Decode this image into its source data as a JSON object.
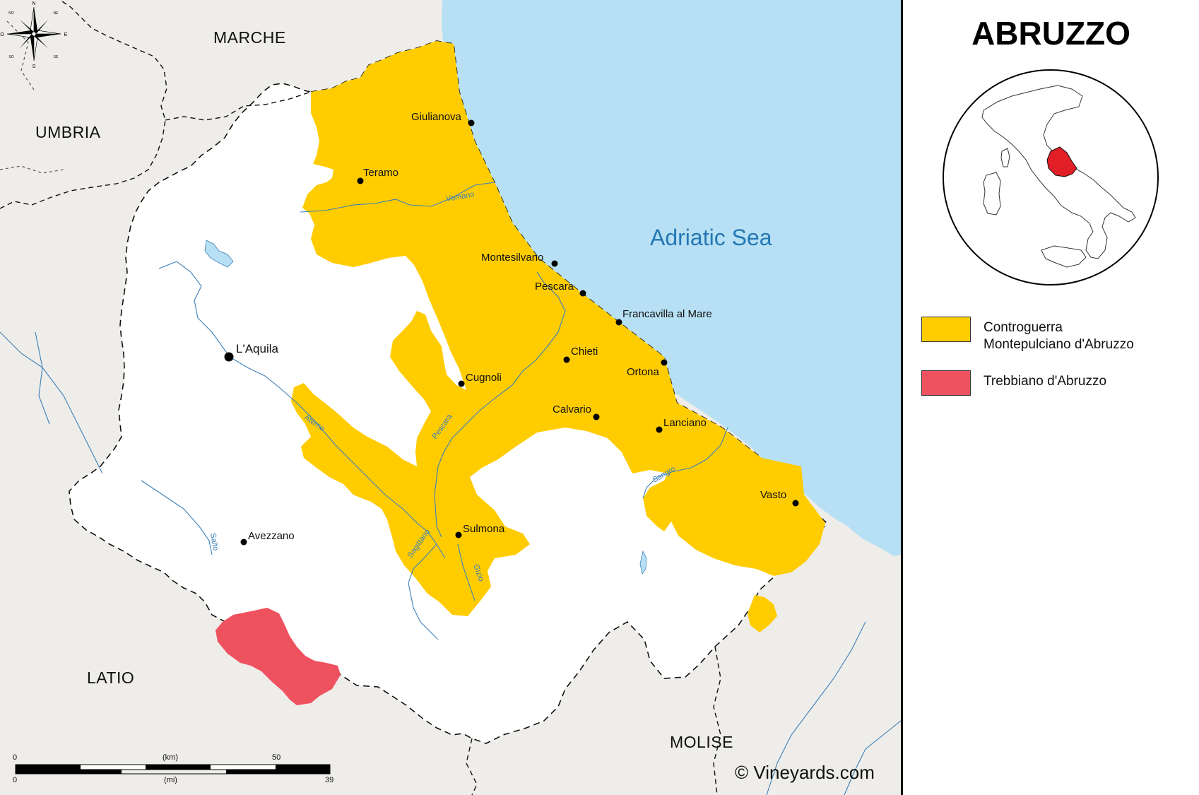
{
  "title": "ABRUZZO",
  "sea_label": "Adriatic Sea",
  "regions": [
    "MARCHE",
    "UMBRIA",
    "LATIO",
    "MOLISE"
  ],
  "cities": [
    {
      "name": "Giulianova"
    },
    {
      "name": "Teramo"
    },
    {
      "name": "Montesilvano"
    },
    {
      "name": "Pescara"
    },
    {
      "name": "Francavilla al Mare"
    },
    {
      "name": "Chieti"
    },
    {
      "name": "Ortona"
    },
    {
      "name": "L'Aquila"
    },
    {
      "name": "Cugnoli"
    },
    {
      "name": "Calvario"
    },
    {
      "name": "Lanciano"
    },
    {
      "name": "Vasto"
    },
    {
      "name": "Sulmona"
    },
    {
      "name": "Avezzano"
    }
  ],
  "rivers": [
    "Vomano",
    "Aterno",
    "Pescara",
    "Sangro",
    "Sagittario",
    "Gizio",
    "Salto"
  ],
  "compass": {
    "n": "N",
    "s": "S",
    "e": "E",
    "o": "O",
    "ne": "NE",
    "no": "NO",
    "se": "SE",
    "so": "SO"
  },
  "legend": [
    {
      "lines": [
        "Controguerra",
        "Montepulciano d'Abruzzo"
      ],
      "color": "#ffcc00"
    },
    {
      "lines": [
        "Trebbiano d'Abruzzo"
      ],
      "color": "#ef525f"
    }
  ],
  "scale": {
    "km_unit": "(km)",
    "mi_unit": "(mi)",
    "km_start": "0",
    "km_end": "50",
    "mi_start": "0",
    "mi_end": "39"
  },
  "copyright": "© Vineyards.com",
  "colors": {
    "sea": "#b7e0f4",
    "neighbor": "#eeedea",
    "abruzzo": "#ffffff",
    "doc_yellow": "#ffcc00",
    "doc_red": "#ef525f",
    "highlight_red": "#e21f26"
  }
}
